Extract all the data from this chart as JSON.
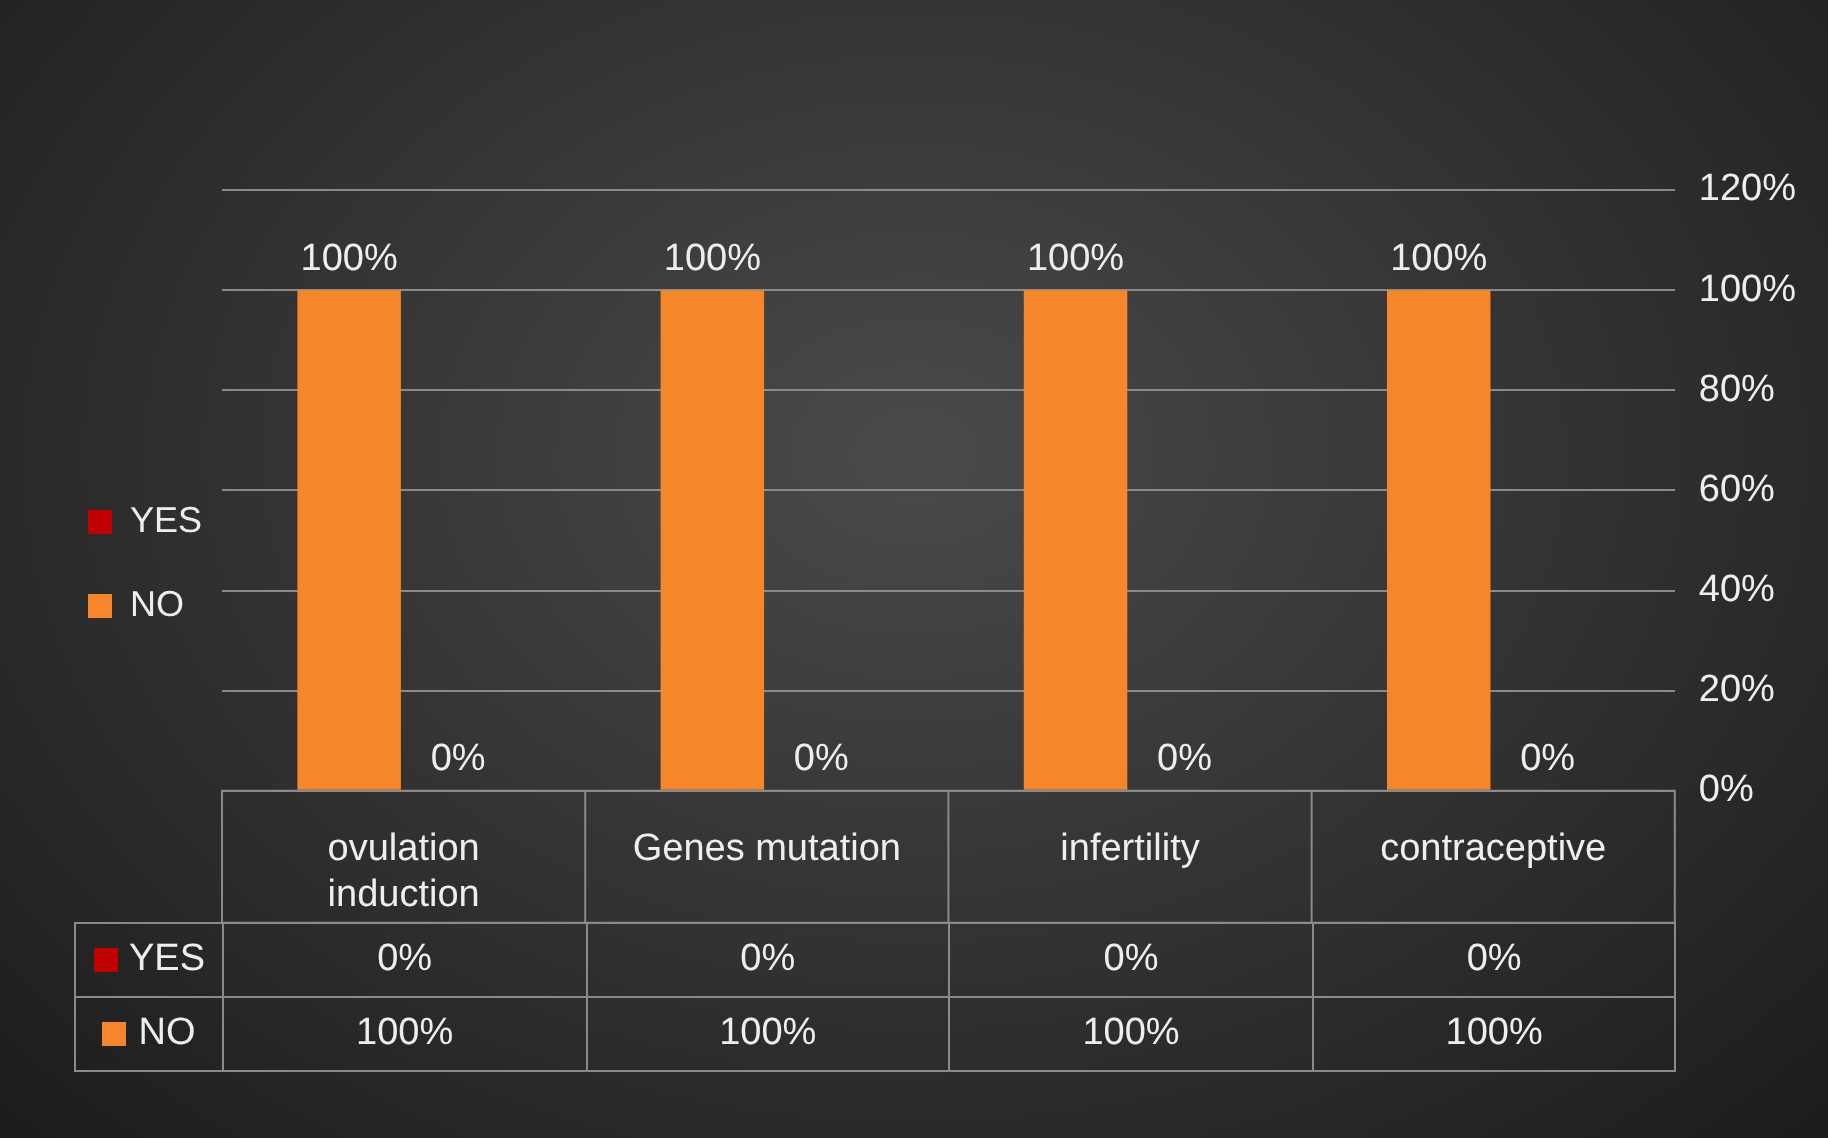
{
  "chart_data": {
    "type": "bar",
    "categories": [
      "ovulation induction",
      "Genes mutation",
      "infertility",
      "contraceptive"
    ],
    "series": [
      {
        "name": "NO",
        "color": "#f5862a",
        "values": [
          100,
          100,
          100,
          100
        ],
        "value_labels": [
          "100%",
          "100%",
          "100%",
          "100%"
        ]
      },
      {
        "name": "YES",
        "color": "#c00000",
        "values": [
          0,
          0,
          0,
          0
        ],
        "value_labels": [
          "0%",
          "0%",
          "0%",
          "0%"
        ]
      }
    ],
    "ylim": [
      0,
      120
    ],
    "yticks": [
      {
        "value": 0,
        "label": "0%"
      },
      {
        "value": 20,
        "label": "20%"
      },
      {
        "value": 40,
        "label": "40%"
      },
      {
        "value": 60,
        "label": "60%"
      },
      {
        "value": 80,
        "label": "80%"
      },
      {
        "value": 100,
        "label": "100%"
      },
      {
        "value": 120,
        "label": "120%"
      }
    ],
    "grid": "y",
    "legend": "left"
  }
}
